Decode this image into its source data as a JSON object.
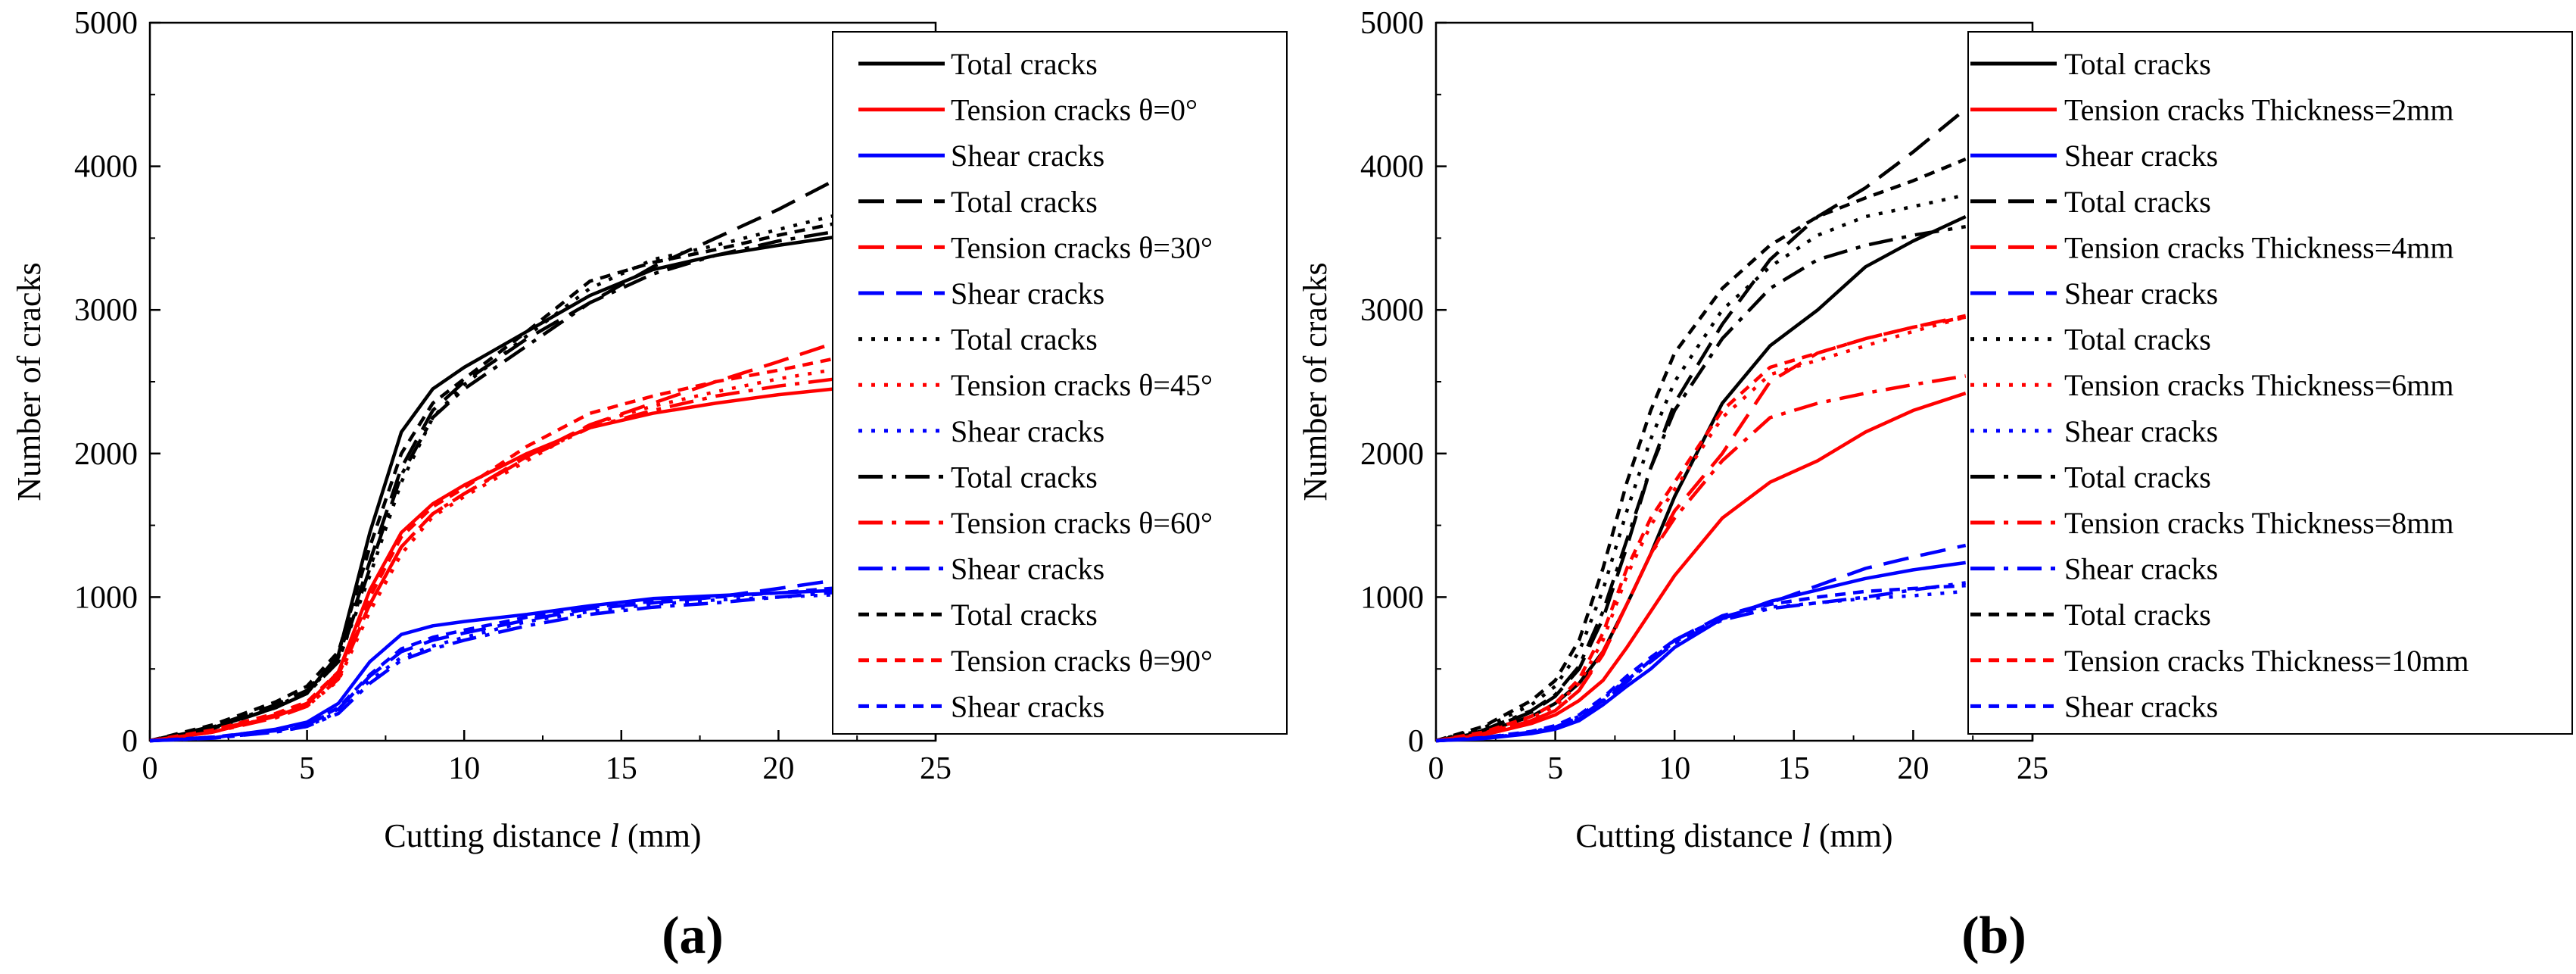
{
  "figure": {
    "panel_labels": [
      "(a)",
      "(b)"
    ]
  },
  "chart_data": [
    {
      "type": "line",
      "panel": "(a)",
      "title": "",
      "xlabel": "Cutting distance l (mm)",
      "xlabel_parts": [
        "Cutting distance ",
        "l",
        " (mm)"
      ],
      "ylabel": "Number of cracks",
      "xlim": [
        0,
        25
      ],
      "ylim": [
        0,
        5000
      ],
      "xticks": [
        0,
        5,
        10,
        15,
        20,
        25
      ],
      "yticks": [
        0,
        1000,
        2000,
        3000,
        4000,
        5000
      ],
      "legend_position": "top-right",
      "x": [
        0,
        2,
        4,
        5,
        6,
        7,
        8,
        9,
        10,
        12,
        14,
        16,
        18,
        20,
        22.2
      ],
      "series": [
        {
          "name": "Total cracks",
          "group": "θ=0°",
          "color": "#000000",
          "dash": "solid",
          "values": [
            0,
            90,
            230,
            330,
            600,
            1450,
            2150,
            2450,
            2600,
            2850,
            3100,
            3280,
            3380,
            3450,
            3520
          ]
        },
        {
          "name": "Tension cracks θ=0°",
          "group": "θ=0°",
          "color": "#ff0000",
          "dash": "solid",
          "values": [
            0,
            60,
            170,
            250,
            480,
            1050,
            1450,
            1650,
            1780,
            2000,
            2180,
            2280,
            2350,
            2410,
            2460
          ]
        },
        {
          "name": "Shear cracks",
          "group": "θ=0°",
          "color": "#0000ff",
          "dash": "solid",
          "values": [
            0,
            20,
            80,
            130,
            260,
            550,
            740,
            800,
            830,
            880,
            940,
            990,
            1010,
            1030,
            1050
          ]
        },
        {
          "name": "Total cracks",
          "group": "θ=30°",
          "color": "#000000",
          "dash": "dash",
          "values": [
            0,
            100,
            250,
            350,
            580,
            1250,
            1900,
            2300,
            2500,
            2800,
            3050,
            3300,
            3500,
            3700,
            3950
          ]
        },
        {
          "name": "Tension cracks θ=30°",
          "group": "θ=30°",
          "color": "#ff0000",
          "dash": "dash",
          "values": [
            0,
            70,
            180,
            260,
            460,
            950,
            1350,
            1580,
            1720,
            1980,
            2200,
            2350,
            2500,
            2640,
            2800
          ]
        },
        {
          "name": "Shear cracks",
          "group": "θ=30°",
          "color": "#0000ff",
          "dash": "dash",
          "values": [
            0,
            25,
            70,
            110,
            220,
            450,
            620,
            700,
            750,
            840,
            920,
            960,
            1000,
            1060,
            1130
          ]
        },
        {
          "name": "Total cracks",
          "group": "θ=45°",
          "color": "#000000",
          "dash": "dot",
          "values": [
            0,
            95,
            240,
            340,
            560,
            1150,
            1800,
            2250,
            2480,
            2820,
            3150,
            3350,
            3450,
            3560,
            3680
          ]
        },
        {
          "name": "Tension cracks θ=45°",
          "group": "θ=45°",
          "color": "#ff0000",
          "dash": "dot",
          "values": [
            0,
            65,
            170,
            240,
            420,
            900,
            1300,
            1560,
            1700,
            1950,
            2200,
            2330,
            2430,
            2520,
            2600
          ]
        },
        {
          "name": "Shear cracks",
          "group": "θ=45°",
          "color": "#0000ff",
          "dash": "dot",
          "values": [
            0,
            20,
            60,
            100,
            200,
            420,
            580,
            660,
            720,
            830,
            900,
            950,
            980,
            1000,
            1020
          ]
        },
        {
          "name": "Total cracks",
          "group": "θ=60°",
          "color": "#000000",
          "dash": "dashdot",
          "values": [
            0,
            85,
            230,
            330,
            550,
            1200,
            1850,
            2250,
            2450,
            2750,
            3050,
            3250,
            3380,
            3480,
            3560
          ]
        },
        {
          "name": "Tension cracks θ=60°",
          "group": "θ=60°",
          "color": "#ff0000",
          "dash": "dashdot",
          "values": [
            0,
            60,
            160,
            240,
            430,
            950,
            1350,
            1580,
            1720,
            1970,
            2180,
            2300,
            2400,
            2470,
            2530
          ]
        },
        {
          "name": "Shear cracks",
          "group": "θ=60°",
          "color": "#0000ff",
          "dash": "dashdot",
          "values": [
            0,
            18,
            60,
            100,
            190,
            400,
            560,
            640,
            700,
            800,
            880,
            930,
            960,
            1000,
            1040
          ]
        },
        {
          "name": "Total cracks",
          "group": "θ=90°",
          "color": "#000000",
          "dash": "shortdash",
          "values": [
            0,
            110,
            270,
            380,
            620,
            1350,
            2000,
            2350,
            2520,
            2850,
            3200,
            3330,
            3420,
            3520,
            3620
          ]
        },
        {
          "name": "Tension cracks θ=90°",
          "group": "θ=90°",
          "color": "#ff0000",
          "dash": "shortdash",
          "values": [
            0,
            75,
            190,
            270,
            480,
            1000,
            1420,
            1630,
            1760,
            2050,
            2280,
            2400,
            2500,
            2580,
            2680
          ]
        },
        {
          "name": "Shear cracks",
          "group": "θ=90°",
          "color": "#0000ff",
          "dash": "shortdash",
          "values": [
            0,
            25,
            75,
            115,
            230,
            460,
            640,
            720,
            770,
            860,
            930,
            970,
            1000,
            1030,
            1070
          ]
        }
      ]
    },
    {
      "type": "line",
      "panel": "(b)",
      "title": "",
      "xlabel": "Cutting distance l (mm)",
      "xlabel_parts": [
        "Cutting distance ",
        "l",
        " (mm)"
      ],
      "ylabel": "Number of cracks",
      "xlim": [
        0,
        25
      ],
      "ylim": [
        0,
        5000
      ],
      "xticks": [
        0,
        5,
        10,
        15,
        20,
        25
      ],
      "yticks": [
        0,
        1000,
        2000,
        3000,
        4000,
        5000
      ],
      "legend_position": "top-right",
      "x": [
        0,
        2,
        4,
        5,
        6,
        7,
        8,
        9,
        10,
        12,
        14,
        16,
        18,
        20,
        22.2
      ],
      "series": [
        {
          "name": "Total cracks",
          "group": "Thickness=2mm",
          "color": "#000000",
          "dash": "solid",
          "values": [
            0,
            60,
            170,
            260,
            400,
            620,
            950,
            1300,
            1700,
            2350,
            2750,
            3000,
            3300,
            3480,
            3650
          ]
        },
        {
          "name": "Tension cracks Thickness=2mm",
          "group": "Thickness=2mm",
          "color": "#ff0000",
          "dash": "solid",
          "values": [
            0,
            40,
            120,
            180,
            280,
            420,
            650,
            900,
            1150,
            1550,
            1800,
            1950,
            2150,
            2300,
            2420
          ]
        },
        {
          "name": "Shear cracks",
          "group": "Thickness=2mm",
          "color": "#0000ff",
          "dash": "solid",
          "values": [
            0,
            15,
            50,
            80,
            140,
            250,
            380,
            500,
            650,
            850,
            970,
            1050,
            1130,
            1190,
            1240
          ]
        },
        {
          "name": "Total cracks",
          "group": "Thickness=4mm",
          "color": "#000000",
          "dash": "dash",
          "values": [
            0,
            70,
            200,
            310,
            500,
            850,
            1350,
            1900,
            2350,
            2900,
            3350,
            3650,
            3850,
            4100,
            4400
          ]
        },
        {
          "name": "Tension cracks Thickness=4mm",
          "group": "Thickness=4mm",
          "color": "#ff0000",
          "dash": "dash",
          "values": [
            0,
            45,
            140,
            210,
            350,
            600,
            950,
            1300,
            1600,
            2000,
            2500,
            2700,
            2800,
            2880,
            2960
          ]
        },
        {
          "name": "Shear cracks",
          "group": "Thickness=4mm",
          "color": "#0000ff",
          "dash": "dash",
          "values": [
            0,
            20,
            60,
            95,
            160,
            280,
            420,
            560,
            700,
            870,
            960,
            1080,
            1200,
            1280,
            1360
          ]
        },
        {
          "name": "Total cracks",
          "group": "Thickness=6mm",
          "color": "#000000",
          "dash": "dot",
          "values": [
            0,
            90,
            250,
            380,
            620,
            1050,
            1600,
            2100,
            2500,
            3000,
            3300,
            3520,
            3650,
            3720,
            3800
          ]
        },
        {
          "name": "Tension cracks Thickness=6mm",
          "group": "Thickness=6mm",
          "color": "#ff0000",
          "dash": "dot",
          "values": [
            0,
            55,
            160,
            240,
            400,
            700,
            1150,
            1500,
            1750,
            2250,
            2550,
            2650,
            2750,
            2850,
            2950
          ]
        },
        {
          "name": "Shear cracks",
          "group": "Thickness=6mm",
          "color": "#0000ff",
          "dash": "dot",
          "values": [
            0,
            20,
            60,
            100,
            170,
            290,
            430,
            560,
            690,
            850,
            930,
            960,
            990,
            1010,
            1040
          ]
        },
        {
          "name": "Total cracks",
          "group": "Thickness=8mm",
          "color": "#000000",
          "dash": "dashdot",
          "values": [
            0,
            75,
            210,
            320,
            520,
            900,
            1400,
            1900,
            2300,
            2800,
            3150,
            3350,
            3450,
            3520,
            3580
          ]
        },
        {
          "name": "Tension cracks Thickness=8mm",
          "group": "Thickness=8mm",
          "color": "#ff0000",
          "dash": "dashdot",
          "values": [
            0,
            50,
            140,
            210,
            350,
            620,
            950,
            1300,
            1550,
            1950,
            2250,
            2350,
            2420,
            2480,
            2540
          ]
        },
        {
          "name": "Shear cracks",
          "group": "Thickness=8mm",
          "color": "#0000ff",
          "dash": "dashdot",
          "values": [
            0,
            18,
            55,
            90,
            150,
            270,
            410,
            550,
            680,
            840,
            920,
            960,
            1000,
            1050,
            1100
          ]
        },
        {
          "name": "Total cracks",
          "group": "Thickness=10mm",
          "color": "#000000",
          "dash": "shortdash",
          "values": [
            0,
            100,
            280,
            420,
            700,
            1200,
            1800,
            2300,
            2700,
            3150,
            3450,
            3650,
            3780,
            3900,
            4050
          ]
        },
        {
          "name": "Tension cracks Thickness=10mm",
          "group": "Thickness=10mm",
          "color": "#ff0000",
          "dash": "shortdash",
          "values": [
            0,
            60,
            170,
            260,
            430,
            750,
            1200,
            1550,
            1800,
            2300,
            2600,
            2700,
            2800,
            2880,
            2950
          ]
        },
        {
          "name": "Shear cracks",
          "group": "Thickness=10mm",
          "color": "#0000ff",
          "dash": "shortdash",
          "values": [
            0,
            22,
            65,
            105,
            180,
            300,
            450,
            580,
            700,
            860,
            950,
            1000,
            1040,
            1060,
            1080
          ]
        }
      ]
    }
  ]
}
